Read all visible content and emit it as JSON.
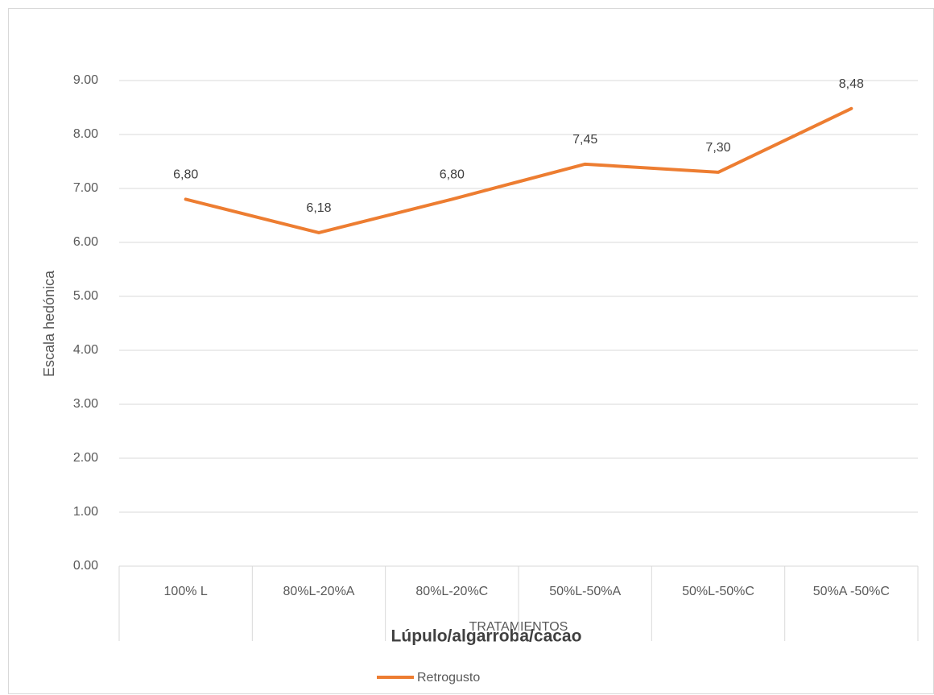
{
  "chart_data": {
    "type": "line",
    "title": "Lúpulo/algarroba/cacao",
    "x_label": "TRATAMIENTOS",
    "y_label": "Escala hedónica",
    "categories": [
      "100% L",
      "80%L-20%A",
      "80%L-20%C",
      "50%L-50%A",
      "50%L-50%C",
      "50%A -50%C"
    ],
    "series": [
      {
        "name": "Retrogusto",
        "color": "#ed7d31",
        "values": [
          6.8,
          6.18,
          6.8,
          7.45,
          7.3,
          8.48
        ],
        "value_labels": [
          "6,80",
          "6,18",
          "6,80",
          "7,45",
          "7,30",
          "8,48"
        ]
      }
    ],
    "ylim": [
      0,
      9
    ],
    "yticks": [
      {
        "value": 0,
        "label": "0.00"
      },
      {
        "value": 1,
        "label": "1.00"
      },
      {
        "value": 2,
        "label": "2.00"
      },
      {
        "value": 3,
        "label": "3.00"
      },
      {
        "value": 4,
        "label": "4.00"
      },
      {
        "value": 5,
        "label": "5.00"
      },
      {
        "value": 6,
        "label": "6.00"
      },
      {
        "value": 7,
        "label": "7.00"
      },
      {
        "value": 8,
        "label": "8.00"
      },
      {
        "value": 9,
        "label": "9.00"
      }
    ],
    "grid": true,
    "legend": "bottom"
  }
}
